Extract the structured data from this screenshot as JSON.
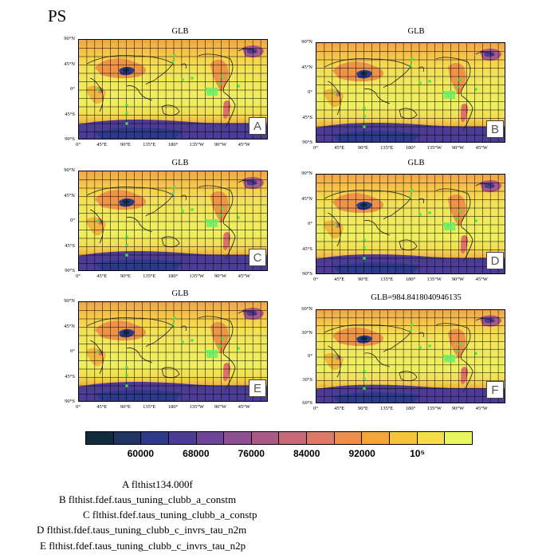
{
  "figure": {
    "variable": "PS"
  },
  "panels": [
    {
      "id": "A",
      "title": "GLB",
      "letter": "A",
      "lat_ticks": [
        "90°N",
        "45°N",
        "0°",
        "45°S",
        "90°S"
      ]
    },
    {
      "id": "B",
      "title": "GLB",
      "letter": "B",
      "lat_ticks": [
        "90°N",
        "45°N",
        "0°",
        "45°S",
        "90°S"
      ]
    },
    {
      "id": "C",
      "title": "GLB",
      "letter": "C",
      "lat_ticks": [
        "90°N",
        "45°N",
        "0°",
        "45°S",
        "90°S"
      ]
    },
    {
      "id": "D",
      "title": "GLB",
      "letter": "D",
      "lat_ticks": [
        "90°N",
        "45°N",
        "0°",
        "45°S",
        "90°S"
      ]
    },
    {
      "id": "E",
      "title": "GLB",
      "letter": "E",
      "lat_ticks": [
        "90°N",
        "45°N",
        "0°",
        "45°S",
        "90°S"
      ]
    },
    {
      "id": "F",
      "title": "GLB=984.8418040946135",
      "letter": "F",
      "lat_ticks": [
        "60°N",
        "30°N",
        "0°",
        "30°S",
        "60°S"
      ]
    }
  ],
  "lon_ticks": [
    "0°",
    "45°E",
    "90°E",
    "135°E",
    "180°",
    "135°W",
    "90°W",
    "45°W"
  ],
  "colorbar": {
    "colors": [
      "#0f2b3c",
      "#1f3463",
      "#2d3a8a",
      "#4d3c96",
      "#6f4599",
      "#8f4f93",
      "#ab5a87",
      "#c66a7a",
      "#dc7a65",
      "#ec8f4d",
      "#f5a33b",
      "#f8c33c",
      "#f4dd48",
      "#e8f460"
    ],
    "labels": [
      "60000",
      "68000",
      "76000",
      "84000",
      "92000",
      "10⁵"
    ]
  },
  "legend": [
    {
      "letter": "A",
      "text": "flthist134.000f"
    },
    {
      "letter": "B",
      "text": "flthist.fdef.taus_tuning_clubb_a_constm"
    },
    {
      "letter": "C",
      "text": "flthist.fdef.taus_tuning_clubb_a_constp"
    },
    {
      "letter": "D",
      "text": "flthist.fdef.taus_tuning_clubb_c_invrs_tau_n2m"
    },
    {
      "letter": "E",
      "text": "flthist.fdef.taus_tuning_clubb_c_invrs_tau_n2p"
    }
  ]
}
